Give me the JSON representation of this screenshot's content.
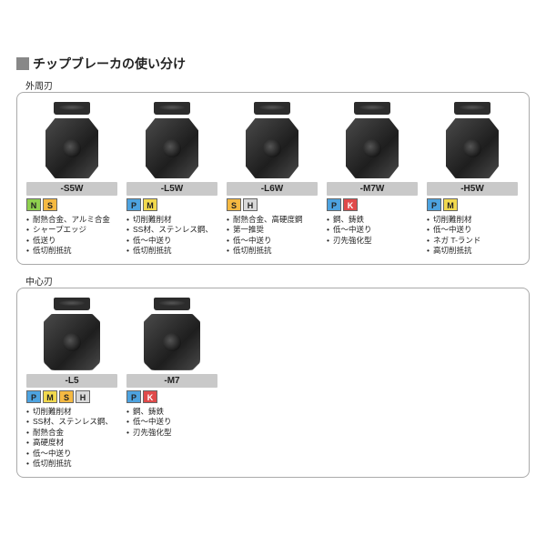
{
  "title": "チップブレーカの使い分け",
  "tag_colors": {
    "N": "#8fd14f",
    "S": "#f5b942",
    "P": "#4da3e0",
    "M": "#f2d94e",
    "H": "#d9d9d9",
    "K": "#e04a4a"
  },
  "sections": [
    {
      "label": "外周刃",
      "cards": [
        {
          "shape": "rect",
          "code": "-S5W",
          "tags": [
            "N",
            "S"
          ],
          "bullets": [
            "耐熱合金、アルミ合金",
            "シャープエッジ",
            "低送り",
            "低切削抵抗"
          ]
        },
        {
          "shape": "rect",
          "code": "-L5W",
          "tags": [
            "P",
            "M"
          ],
          "bullets": [
            "切削難削材",
            "SS材、ステンレス鋼、",
            "低〜中送り",
            "低切削抵抗"
          ]
        },
        {
          "shape": "rect",
          "code": "-L6W",
          "tags": [
            "S",
            "H"
          ],
          "bullets": [
            "耐熱合金、高硬度鋼",
            "第一推奨",
            "低〜中送り",
            "低切削抵抗"
          ]
        },
        {
          "shape": "rect",
          "code": "-M7W",
          "tags": [
            "P",
            "K"
          ],
          "bullets": [
            "鋼、鋳鉄",
            "低〜中送り",
            "刃先強化型"
          ]
        },
        {
          "shape": "rect",
          "code": "-H5W",
          "tags": [
            "P",
            "M"
          ],
          "bullets": [
            "切削難削材",
            "低〜中送り",
            "ネガ T-ランド",
            "高切削抵抗"
          ]
        }
      ]
    },
    {
      "label": "中心刃",
      "cards": [
        {
          "shape": "square",
          "code": "-L5",
          "tags": [
            "P",
            "M",
            "S",
            "H"
          ],
          "bullets": [
            "切削難削材",
            "SS材、ステンレス鋼、",
            "耐熱合金",
            "高硬度材",
            "低〜中送り",
            "低切削抵抗"
          ]
        },
        {
          "shape": "square",
          "code": "-M7",
          "tags": [
            "P",
            "K"
          ],
          "bullets": [
            "鋼、鋳鉄",
            "低〜中送り",
            "刃先強化型"
          ]
        }
      ]
    }
  ]
}
